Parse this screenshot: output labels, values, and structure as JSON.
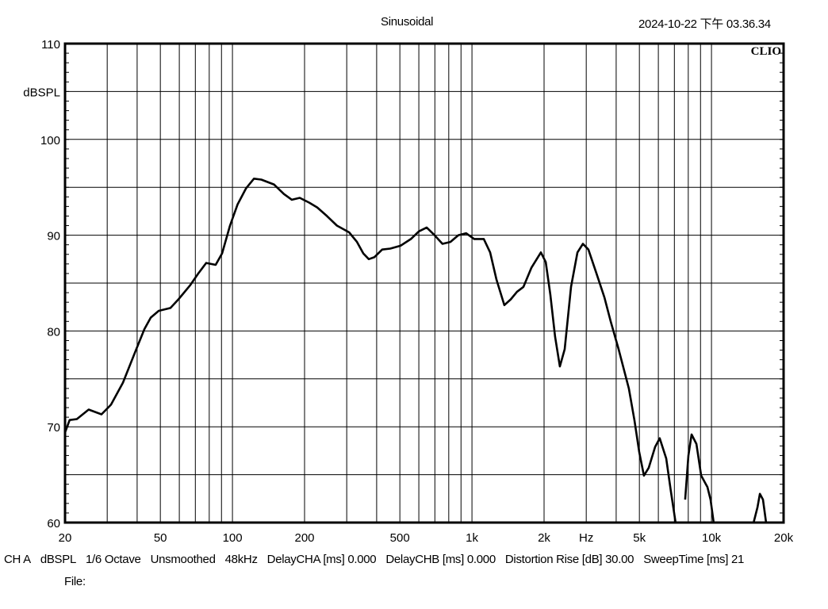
{
  "header": {
    "mode": "Sinusoidal",
    "timestamp": "2024-10-22 下午 03.36.34",
    "logo": "CLIO"
  },
  "footer": {
    "info": [
      "CH A",
      "dBSPL",
      "1/6 Octave",
      "Unsmoothed",
      "48kHz",
      "DelayCHA [ms] 0.000",
      "DelayCHB [ms] 0.000",
      "Distortion Rise [dB] 30.00",
      "SweepTime [ms] 21"
    ],
    "file_label": "File:"
  },
  "chart_data": {
    "type": "line",
    "title": "",
    "xlabel": "Hz",
    "ylabel": "dBSPL",
    "xscale": "log",
    "xlim": [
      20,
      20000
    ],
    "ylim": [
      60,
      110
    ],
    "grid": true,
    "line_color": "#000000",
    "x_ticks": [
      {
        "value": 20,
        "label": "20"
      },
      {
        "value": 50,
        "label": "50"
      },
      {
        "value": 100,
        "label": "100"
      },
      {
        "value": 200,
        "label": "200"
      },
      {
        "value": 500,
        "label": "500"
      },
      {
        "value": 1000,
        "label": "1k"
      },
      {
        "value": 2000,
        "label": "2k"
      },
      {
        "value": 3000,
        "label": "Hz"
      },
      {
        "value": 5000,
        "label": "5k"
      },
      {
        "value": 10000,
        "label": "10k"
      },
      {
        "value": 20000,
        "label": "20k"
      }
    ],
    "y_ticks": [
      {
        "value": 110,
        "label": "110"
      },
      {
        "value": 105,
        "label": "dBSPL"
      },
      {
        "value": 100,
        "label": "100"
      },
      {
        "value": 90,
        "label": "90"
      },
      {
        "value": 80,
        "label": "80"
      },
      {
        "value": 70,
        "label": "70"
      },
      {
        "value": 60,
        "label": "60"
      }
    ],
    "series": [
      {
        "x": [
          20,
          20.9,
          22.4,
          25.1,
          28.4,
          31.1,
          34.9,
          39.1,
          42.9,
          45.6,
          49.2,
          55.1,
          59.5,
          66.7,
          72,
          77.7,
          85.1,
          90.5,
          97.7,
          105,
          114,
          123,
          132,
          149,
          164,
          177,
          191,
          209,
          226,
          248,
          273,
          307,
          331,
          352,
          371,
          391,
          422,
          456,
          503,
          556,
          600,
          647,
          698,
          753,
          813,
          877,
          946,
          1022,
          1120,
          1191,
          1265,
          1365,
          1452,
          1542,
          1640,
          1770,
          1940,
          2032,
          2124,
          2224,
          2328,
          2438,
          2592,
          2756,
          2906,
          3064,
          3310,
          3572,
          3794,
          4096,
          4520,
          4768,
          4990,
          5224,
          5466,
          5814,
          6080,
          6472,
          6776,
          7092,
          null,
          7762,
          8012,
          8260,
          8650,
          9058,
          9620,
          9910,
          10226,
          null,
          14960,
          15560,
          15920,
          16400,
          16920
        ],
        "y": [
          69.4,
          70.7,
          70.8,
          71.8,
          71.3,
          72.3,
          74.6,
          77.7,
          80.2,
          81.4,
          82.1,
          82.4,
          83.3,
          84.8,
          86,
          87.1,
          86.9,
          88.1,
          91,
          93.2,
          94.9,
          95.9,
          95.8,
          95.3,
          94.3,
          93.7,
          93.9,
          93.4,
          92.9,
          92,
          91,
          90.3,
          89.3,
          88.1,
          87.5,
          87.7,
          88.5,
          88.6,
          88.9,
          89.6,
          90.4,
          90.8,
          90,
          89.1,
          89.3,
          90,
          90.2,
          89.6,
          89.6,
          88.2,
          85.4,
          82.7,
          83.3,
          84.1,
          84.6,
          86.6,
          88.2,
          87.2,
          83.8,
          79.4,
          76.3,
          78.1,
          84.6,
          88.2,
          89.1,
          88.5,
          86,
          83.5,
          81,
          78.1,
          74,
          70.7,
          67.4,
          64.9,
          65.7,
          67.9,
          68.8,
          66.7,
          63.2,
          59.9,
          null,
          62.4,
          67,
          69.2,
          68.2,
          64.9,
          63.7,
          62.4,
          59.9,
          null,
          59.9,
          61.6,
          63,
          62.4,
          59.9
        ]
      }
    ]
  }
}
